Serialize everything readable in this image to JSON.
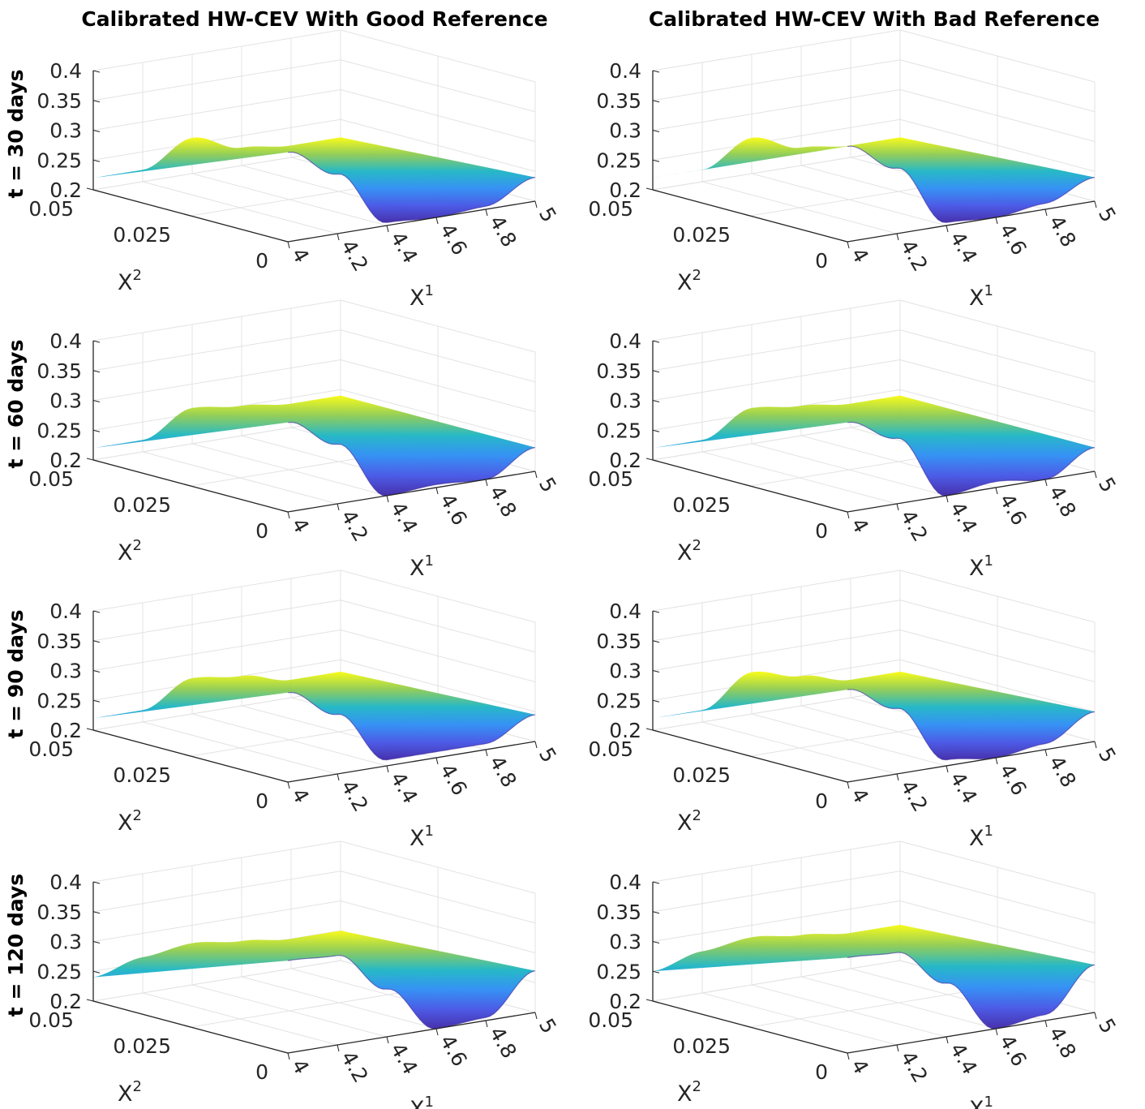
{
  "chart_data": {
    "type": "surface",
    "columns": [
      {
        "title": "Calibrated HW-CEV With Good Reference"
      },
      {
        "title": "Calibrated HW-CEV With Bad Reference"
      }
    ],
    "rows": [
      {
        "label": "t = 30 days"
      },
      {
        "label": "t = 60 days"
      },
      {
        "label": "t = 90 days"
      },
      {
        "label": "t = 120 days"
      }
    ],
    "x1_axis": {
      "label": "X",
      "sup": "1",
      "ticks": [
        "4",
        "4.2",
        "4.4",
        "4.6",
        "4.8",
        "5"
      ],
      "range": [
        4,
        5
      ]
    },
    "x2_axis": {
      "label": "X",
      "sup": "2",
      "ticks": [
        "0",
        "0.025",
        "0.05"
      ],
      "range": [
        0,
        0.05
      ]
    },
    "z_axis": {
      "ticks": [
        "0.2",
        "0.25",
        "0.3",
        "0.35",
        "0.4"
      ],
      "range": [
        0.2,
        0.4
      ]
    },
    "panels": [
      {
        "row": 0,
        "col": 0,
        "x1": [
          4.0,
          4.2,
          4.4,
          4.6,
          4.8,
          5.0
        ],
        "z_front": [
          0.35,
          0.3,
          0.205,
          0.2,
          0.205,
          0.24
        ],
        "z_back": [
          0.22,
          0.22,
          0.26,
          0.23,
          0.22,
          0.22
        ]
      },
      {
        "row": 0,
        "col": 1,
        "x1": [
          4.0,
          4.2,
          4.4,
          4.6,
          4.8,
          5.0
        ],
        "z_front": [
          0.36,
          0.31,
          0.205,
          0.2,
          0.21,
          0.24
        ],
        "z_back": [
          0.22,
          0.22,
          0.26,
          0.23,
          0.22,
          0.22
        ]
      },
      {
        "row": 1,
        "col": 0,
        "x1": [
          4.0,
          4.2,
          4.4,
          4.6,
          4.8,
          5.0
        ],
        "z_front": [
          0.35,
          0.3,
          0.2,
          0.205,
          0.2,
          0.24
        ],
        "z_back": [
          0.22,
          0.22,
          0.26,
          0.25,
          0.24,
          0.24
        ]
      },
      {
        "row": 1,
        "col": 1,
        "x1": [
          4.0,
          4.2,
          4.4,
          4.6,
          4.8,
          5.0
        ],
        "z_front": [
          0.35,
          0.31,
          0.2,
          0.21,
          0.2,
          0.24
        ],
        "z_back": [
          0.22,
          0.22,
          0.26,
          0.25,
          0.24,
          0.24
        ]
      },
      {
        "row": 2,
        "col": 0,
        "x1": [
          4.0,
          4.2,
          4.4,
          4.6,
          4.8,
          5.0
        ],
        "z_front": [
          0.35,
          0.3,
          0.21,
          0.21,
          0.21,
          0.245
        ],
        "z_back": [
          0.22,
          0.22,
          0.26,
          0.25,
          0.23,
          0.23
        ]
      },
      {
        "row": 2,
        "col": 1,
        "x1": [
          4.0,
          4.2,
          4.4,
          4.6,
          4.8,
          5.0
        ],
        "z_front": [
          0.355,
          0.31,
          0.21,
          0.2,
          0.21,
          0.25
        ],
        "z_back": [
          0.22,
          0.22,
          0.27,
          0.25,
          0.23,
          0.23
        ]
      },
      {
        "row": 3,
        "col": 0,
        "x1": [
          4.0,
          4.2,
          4.4,
          4.6,
          4.8,
          5.0
        ],
        "z_front": [
          0.355,
          0.35,
          0.28,
          0.2,
          0.205,
          0.27
        ],
        "z_back": [
          0.24,
          0.26,
          0.27,
          0.26,
          0.25,
          0.25
        ]
      },
      {
        "row": 3,
        "col": 1,
        "x1": [
          4.0,
          4.2,
          4.4,
          4.6,
          4.8,
          5.0
        ],
        "z_front": [
          0.36,
          0.355,
          0.29,
          0.2,
          0.21,
          0.28
        ],
        "z_back": [
          0.25,
          0.27,
          0.28,
          0.27,
          0.26,
          0.26
        ]
      }
    ]
  }
}
